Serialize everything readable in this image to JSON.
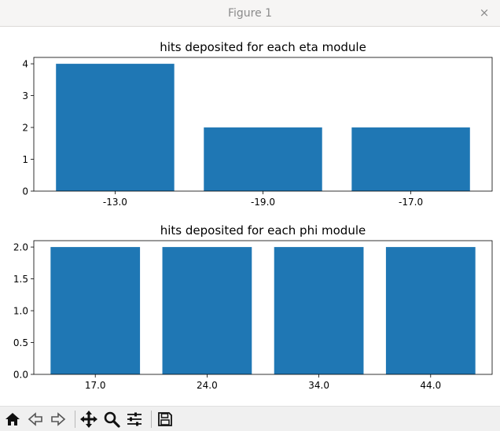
{
  "window": {
    "title": "Figure 1",
    "close_glyph": "×"
  },
  "chart_data": [
    {
      "type": "bar",
      "title": "hits deposited for each eta module",
      "categories": [
        "-13.0",
        "-19.0",
        "-17.0"
      ],
      "values": [
        4,
        2,
        2
      ],
      "ylim": [
        0,
        4.2
      ],
      "yticks": [
        "0",
        "1",
        "2",
        "3",
        "4"
      ],
      "ytick_values": [
        0,
        1,
        2,
        3,
        4
      ],
      "xlabel": "",
      "ylabel": "",
      "color": "#1f77b4",
      "grid": false
    },
    {
      "type": "bar",
      "title": "hits deposited for each phi module",
      "categories": [
        "17.0",
        "24.0",
        "34.0",
        "44.0"
      ],
      "values": [
        2,
        2,
        2,
        2
      ],
      "ylim": [
        0,
        2.1
      ],
      "yticks": [
        "0.0",
        "0.5",
        "1.0",
        "1.5",
        "2.0"
      ],
      "ytick_values": [
        0,
        0.5,
        1.0,
        1.5,
        2.0
      ],
      "xlabel": "",
      "ylabel": "",
      "color": "#1f77b4",
      "grid": false
    }
  ],
  "toolbar": {
    "buttons": [
      "home-icon",
      "back-icon",
      "forward-icon",
      "pan-icon",
      "zoom-icon",
      "configure-subplots-icon",
      "save-icon"
    ]
  }
}
